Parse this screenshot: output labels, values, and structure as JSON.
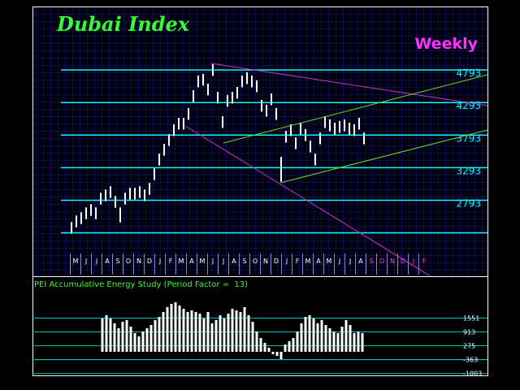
{
  "chart_data": [
    {
      "type": "range_bar",
      "title": "Dubai Index",
      "subtitle": "Weekly",
      "color": "#ffffff",
      "grid_color": "#00ffff",
      "high": [
        2458,
        2558,
        2608,
        2683,
        2733,
        2683,
        2908,
        2958,
        3008,
        2858,
        2683,
        2908,
        2983,
        2983,
        3008,
        2958,
        3058,
        3283,
        3508,
        3658,
        3808,
        3958,
        4058,
        4058,
        4208,
        4483,
        4708,
        4733,
        4583,
        4883,
        4458,
        4083,
        4408,
        4458,
        4533,
        4708,
        4758,
        4708,
        4633,
        4333,
        4258,
        4433,
        4208,
        3458,
        3858,
        3958,
        3758,
        3983,
        3883,
        3708,
        3508,
        3833,
        4083,
        4033,
        3983,
        4008,
        4033,
        3983,
        3958,
        4058,
        3833
      ],
      "low": [
        2278,
        2378,
        2428,
        2503,
        2553,
        2503,
        2728,
        2778,
        2828,
        2678,
        2453,
        2728,
        2803,
        2803,
        2828,
        2778,
        2878,
        3103,
        3328,
        3478,
        3628,
        3778,
        3878,
        3878,
        4028,
        4303,
        4528,
        4553,
        4403,
        4703,
        4278,
        3903,
        4228,
        4278,
        4353,
        4528,
        4578,
        4528,
        4453,
        4153,
        4078,
        4253,
        4028,
        3078,
        3678,
        3778,
        3578,
        3803,
        3703,
        3528,
        3328,
        3653,
        3903,
        3853,
        3803,
        3828,
        3853,
        3803,
        3778,
        3878,
        3653
      ],
      "ylim": [
        2000,
        5693
      ],
      "yticks": [
        {
          "value": 2293,
          "label": null
        },
        2793,
        3293,
        3793,
        4293,
        4793
      ],
      "categories": [
        "M",
        "J",
        "J",
        "A",
        "S",
        "O",
        "N",
        "D",
        "J",
        "F",
        "M",
        "A",
        "M",
        "J",
        "J",
        "A",
        "S",
        "O",
        "N",
        "D",
        "J",
        "F",
        "M",
        "A",
        "M",
        "J",
        "J",
        "A"
      ],
      "category_color": "#ffffff",
      "future_categories": [
        "S",
        "O",
        "N",
        "D",
        "J",
        "F"
      ],
      "future_color": "#ff33ff"
    },
    {
      "type": "bar",
      "title": "PEI Accumulative Energy Study (Period Factor =  13)",
      "color": "#ffffff",
      "grid_color": "#00ffff",
      "values": [
        1538,
        1688,
        1538,
        1313,
        1088,
        1388,
        1463,
        1163,
        863,
        713,
        938,
        1088,
        1238,
        1463,
        1613,
        1838,
        2063,
        2213,
        2288,
        2138,
        1988,
        1838,
        1913,
        1838,
        1763,
        1538,
        1838,
        1313,
        1463,
        1688,
        1538,
        1763,
        1988,
        1913,
        1838,
        2063,
        1688,
        1388,
        938,
        638,
        413,
        188,
        -113,
        -188,
        -338,
        338,
        488,
        638,
        938,
        1313,
        1613,
        1688,
        1538,
        1313,
        1463,
        1238,
        1088,
        938,
        863,
        1163,
        1463,
        1238,
        863,
        938,
        863
      ],
      "ylim": [
        -1013,
        3375
      ],
      "yticks": [
        -1003,
        -363,
        275,
        913,
        1551
      ]
    }
  ]
}
